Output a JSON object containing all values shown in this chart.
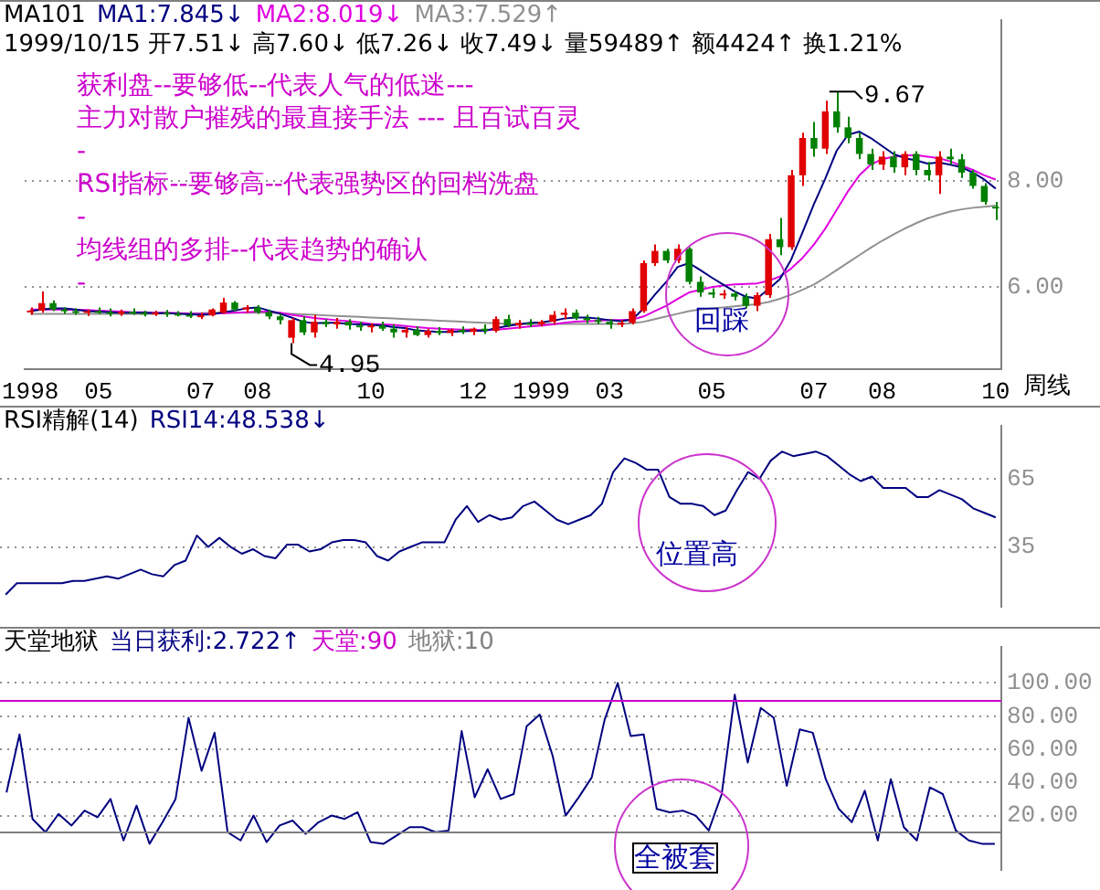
{
  "chart_data": [
    {
      "type": "candlestick",
      "title": "MA101",
      "subtitle": "1999/10/15 开7.51↓ 高7.60↓ 低7.26↓ 收7.49↓ 量59489↑ 额4424↑ 换1.21%",
      "xlabel": "周线",
      "categories": [
        "1998",
        null,
        null,
        null,
        null,
        null,
        "05",
        null,
        null,
        null,
        null,
        null,
        null,
        null,
        null,
        "07",
        null,
        null,
        null,
        null,
        "08",
        null,
        null,
        null,
        null,
        null,
        null,
        null,
        null,
        null,
        "10",
        null,
        null,
        null,
        null,
        null,
        null,
        null,
        null,
        "12",
        null,
        null,
        null,
        null,
        null,
        "1999",
        null,
        null,
        null,
        null,
        null,
        "03",
        null,
        null,
        null,
        null,
        null,
        null,
        null,
        null,
        "05",
        null,
        null,
        null,
        null,
        null,
        null,
        null,
        null,
        "07",
        null,
        null,
        null,
        null,
        null,
        "08",
        null,
        null,
        null,
        null,
        null,
        null,
        null,
        null,
        null,
        "10"
      ],
      "ohlc": [
        [
          5.55,
          5.62,
          5.48,
          5.56
        ],
        [
          5.56,
          5.92,
          5.52,
          5.7
        ],
        [
          5.7,
          5.75,
          5.55,
          5.58
        ],
        [
          5.58,
          5.62,
          5.5,
          5.55
        ],
        [
          5.55,
          5.6,
          5.48,
          5.52
        ],
        [
          5.52,
          5.58,
          5.46,
          5.55
        ],
        [
          5.55,
          5.62,
          5.5,
          5.53
        ],
        [
          5.53,
          5.6,
          5.45,
          5.5
        ],
        [
          5.5,
          5.58,
          5.46,
          5.54
        ],
        [
          5.54,
          5.6,
          5.48,
          5.52
        ],
        [
          5.52,
          5.56,
          5.45,
          5.5
        ],
        [
          5.5,
          5.56,
          5.46,
          5.52
        ],
        [
          5.52,
          5.57,
          5.44,
          5.5
        ],
        [
          5.5,
          5.55,
          5.45,
          5.48
        ],
        [
          5.48,
          5.55,
          5.42,
          5.45
        ],
        [
          5.45,
          5.52,
          5.4,
          5.47
        ],
        [
          5.47,
          5.6,
          5.45,
          5.58
        ],
        [
          5.52,
          5.8,
          5.5,
          5.71
        ],
        [
          5.71,
          5.74,
          5.55,
          5.58
        ],
        [
          5.58,
          5.66,
          5.52,
          5.62
        ],
        [
          5.62,
          5.66,
          5.5,
          5.53
        ],
        [
          5.53,
          5.58,
          5.4,
          5.45
        ],
        [
          5.45,
          5.5,
          5.3,
          5.38
        ],
        [
          5.05,
          5.42,
          4.95,
          5.38
        ],
        [
          5.38,
          5.45,
          5.1,
          5.15
        ],
        [
          5.15,
          5.48,
          5.05,
          5.35
        ],
        [
          5.35,
          5.4,
          5.25,
          5.3
        ],
        [
          5.3,
          5.42,
          5.22,
          5.35
        ],
        [
          5.35,
          5.4,
          5.2,
          5.28
        ],
        [
          5.28,
          5.35,
          5.18,
          5.25
        ],
        [
          5.25,
          5.32,
          5.15,
          5.28
        ],
        [
          5.28,
          5.35,
          5.18,
          5.22
        ],
        [
          5.22,
          5.3,
          5.05,
          5.15
        ],
        [
          5.15,
          5.25,
          5.05,
          5.2
        ],
        [
          5.2,
          5.26,
          5.08,
          5.1
        ],
        [
          5.1,
          5.22,
          5.05,
          5.18
        ],
        [
          5.18,
          5.25,
          5.1,
          5.14
        ],
        [
          5.14,
          5.22,
          5.08,
          5.2
        ],
        [
          5.2,
          5.26,
          5.12,
          5.16
        ],
        [
          5.16,
          5.24,
          5.1,
          5.22
        ],
        [
          5.22,
          5.3,
          5.12,
          5.18
        ],
        [
          5.18,
          5.45,
          5.15,
          5.4
        ],
        [
          5.4,
          5.48,
          5.25,
          5.28
        ],
        [
          5.28,
          5.38,
          5.22,
          5.33
        ],
        [
          5.33,
          5.4,
          5.25,
          5.3
        ],
        [
          5.3,
          5.38,
          5.26,
          5.35
        ],
        [
          5.35,
          5.55,
          5.3,
          5.48
        ],
        [
          5.48,
          5.6,
          5.4,
          5.52
        ],
        [
          5.52,
          5.58,
          5.38,
          5.42
        ],
        [
          5.42,
          5.48,
          5.32,
          5.38
        ],
        [
          5.38,
          5.44,
          5.3,
          5.35
        ],
        [
          5.35,
          5.4,
          5.22,
          5.3
        ],
        [
          5.3,
          5.38,
          5.25,
          5.33
        ],
        [
          5.33,
          5.6,
          5.3,
          5.55
        ],
        [
          5.55,
          6.5,
          5.52,
          6.45
        ],
        [
          6.45,
          6.8,
          6.4,
          6.68
        ],
        [
          6.68,
          6.72,
          6.45,
          6.5
        ],
        [
          6.5,
          6.8,
          6.45,
          6.72
        ],
        [
          6.72,
          6.75,
          6.05,
          6.1
        ],
        [
          6.1,
          6.2,
          5.82,
          5.9
        ],
        [
          5.9,
          5.98,
          5.8,
          5.86
        ],
        [
          5.86,
          5.95,
          5.78,
          5.88
        ],
        [
          5.88,
          5.92,
          5.75,
          5.82
        ],
        [
          5.82,
          5.88,
          5.6,
          5.65
        ],
        [
          5.65,
          5.9,
          5.55,
          5.85
        ],
        [
          5.85,
          7.0,
          5.8,
          6.9
        ],
        [
          6.9,
          7.3,
          6.6,
          6.75
        ],
        [
          6.75,
          8.2,
          6.7,
          8.1
        ],
        [
          8.1,
          8.9,
          7.9,
          8.8
        ],
        [
          8.8,
          9.1,
          8.45,
          8.6
        ],
        [
          8.6,
          9.5,
          8.5,
          9.3
        ],
        [
          9.3,
          9.67,
          8.9,
          9.0
        ],
        [
          9.0,
          9.2,
          8.7,
          8.8
        ],
        [
          8.8,
          8.9,
          8.4,
          8.5
        ],
        [
          8.5,
          8.6,
          8.2,
          8.3
        ],
        [
          8.3,
          8.55,
          8.2,
          8.45
        ],
        [
          8.45,
          8.55,
          8.15,
          8.25
        ],
        [
          8.25,
          8.55,
          8.1,
          8.5
        ],
        [
          8.5,
          8.55,
          8.1,
          8.2
        ],
        [
          8.2,
          8.35,
          8.0,
          8.1
        ],
        [
          8.1,
          8.55,
          7.75,
          8.45
        ],
        [
          8.45,
          8.6,
          8.3,
          8.4
        ],
        [
          8.4,
          8.5,
          8.05,
          8.15
        ],
        [
          8.15,
          8.2,
          7.85,
          7.9
        ],
        [
          7.9,
          7.95,
          7.55,
          7.6
        ],
        [
          7.51,
          7.6,
          7.26,
          7.49
        ]
      ],
      "colors": [
        "#e00000",
        "#e00000",
        "#008000",
        "#008000",
        "#008000",
        "#e00000",
        "#008000",
        "#008000",
        "#e00000",
        "#008000",
        "#008000",
        "#e00000",
        "#008000",
        "#008000",
        "#008000",
        "#e00000",
        "#e00000",
        "#e00000",
        "#008000",
        "#e00000",
        "#008000",
        "#008000",
        "#008000",
        "#e00000",
        "#008000",
        "#e00000",
        "#008000",
        "#e00000",
        "#008000",
        "#008000",
        "#e00000",
        "#008000",
        "#008000",
        "#e00000",
        "#008000",
        "#e00000",
        "#008000",
        "#e00000",
        "#008000",
        "#e00000",
        "#008000",
        "#e00000",
        "#008000",
        "#e00000",
        "#008000",
        "#e00000",
        "#e00000",
        "#e00000",
        "#008000",
        "#008000",
        "#008000",
        "#008000",
        "#e00000",
        "#e00000",
        "#e00000",
        "#e00000",
        "#008000",
        "#e00000",
        "#008000",
        "#008000",
        "#008000",
        "#e00000",
        "#008000",
        "#008000",
        "#e00000",
        "#e00000",
        "#008000",
        "#e00000",
        "#e00000",
        "#008000",
        "#e00000",
        "#008000",
        "#008000",
        "#008000",
        "#008000",
        "#e00000",
        "#008000",
        "#e00000",
        "#008000",
        "#008000",
        "#e00000",
        "#008000",
        "#008000",
        "#008000",
        "#008000",
        "#008000"
      ],
      "series": [
        {
          "type": "line",
          "name": "MA1:7.845↓",
          "color": "#000080",
          "values": [
            5.55,
            5.58,
            5.6,
            5.6,
            5.58,
            5.55,
            5.54,
            5.53,
            5.52,
            5.52,
            5.52,
            5.51,
            5.51,
            5.5,
            5.49,
            5.48,
            5.49,
            5.53,
            5.56,
            5.6,
            5.62,
            5.56,
            5.5,
            5.43,
            5.35,
            5.32,
            5.33,
            5.33,
            5.31,
            5.3,
            5.29,
            5.28,
            5.25,
            5.23,
            5.19,
            5.17,
            5.16,
            5.16,
            5.17,
            5.18,
            5.18,
            5.23,
            5.27,
            5.3,
            5.33,
            5.34,
            5.37,
            5.41,
            5.43,
            5.43,
            5.41,
            5.38,
            5.36,
            5.39,
            5.6,
            5.86,
            6.1,
            6.38,
            6.45,
            6.32,
            6.18,
            6.05,
            5.92,
            5.82,
            5.79,
            5.96,
            6.15,
            6.52,
            7.03,
            7.56,
            8.04,
            8.56,
            8.86,
            8.92,
            8.8,
            8.65,
            8.5,
            8.42,
            8.38,
            8.32,
            8.34,
            8.3,
            8.25,
            8.15,
            8.02,
            7.85
          ]
        },
        {
          "type": "line",
          "name": "MA2:8.019↓",
          "color": "#e000e0",
          "values": [
            5.58,
            5.58,
            5.58,
            5.58,
            5.57,
            5.57,
            5.56,
            5.55,
            5.54,
            5.53,
            5.53,
            5.52,
            5.52,
            5.51,
            5.5,
            5.5,
            5.5,
            5.51,
            5.52,
            5.53,
            5.54,
            5.54,
            5.52,
            5.48,
            5.45,
            5.42,
            5.4,
            5.38,
            5.36,
            5.34,
            5.31,
            5.3,
            5.29,
            5.27,
            5.25,
            5.23,
            5.22,
            5.21,
            5.2,
            5.2,
            5.19,
            5.2,
            5.22,
            5.24,
            5.26,
            5.28,
            5.3,
            5.33,
            5.35,
            5.36,
            5.37,
            5.38,
            5.38,
            5.39,
            5.45,
            5.55,
            5.65,
            5.78,
            5.9,
            5.95,
            6.0,
            6.03,
            6.05,
            6.06,
            6.07,
            6.12,
            6.2,
            6.35,
            6.55,
            6.8,
            7.1,
            7.45,
            7.8,
            8.1,
            8.3,
            8.4,
            8.45,
            8.47,
            8.48,
            8.45,
            8.42,
            8.36,
            8.28,
            8.2,
            8.1,
            8.02
          ]
        },
        {
          "type": "line",
          "name": "MA3:7.529↑",
          "color": "#909090",
          "values": [
            5.5,
            5.5,
            5.5,
            5.5,
            5.5,
            5.5,
            5.5,
            5.5,
            5.5,
            5.5,
            5.5,
            5.5,
            5.51,
            5.51,
            5.51,
            5.51,
            5.52,
            5.52,
            5.52,
            5.52,
            5.52,
            5.52,
            5.51,
            5.5,
            5.49,
            5.48,
            5.47,
            5.46,
            5.45,
            5.44,
            5.43,
            5.42,
            5.41,
            5.4,
            5.39,
            5.38,
            5.37,
            5.36,
            5.35,
            5.34,
            5.33,
            5.32,
            5.31,
            5.31,
            5.31,
            5.31,
            5.31,
            5.31,
            5.31,
            5.31,
            5.31,
            5.31,
            5.31,
            5.32,
            5.35,
            5.4,
            5.45,
            5.5,
            5.55,
            5.58,
            5.6,
            5.62,
            5.64,
            5.66,
            5.68,
            5.72,
            5.78,
            5.86,
            5.95,
            6.05,
            6.18,
            6.32,
            6.46,
            6.6,
            6.74,
            6.87,
            6.99,
            7.1,
            7.2,
            7.29,
            7.36,
            7.42,
            7.46,
            7.49,
            7.51,
            7.53
          ]
        }
      ],
      "ylim": [
        4.46,
        11.02
      ],
      "yticks": [
        {
          "value": 6,
          "label": "6.00"
        },
        {
          "value": 8,
          "label": "8.00"
        }
      ],
      "grid": "y",
      "legend": "top left",
      "annotations": [
        "获利盘--要够低--代表人气的低迷---",
        "主力对散户摧残的最直接手法 --- 且百试百灵",
        "-",
        "RSI指标--要够高--代表强势区的回档洗盘",
        "-",
        "均线组的多排--代表趋势的确认",
        "-",
        "9.67",
        "4.95",
        "回踩"
      ]
    },
    {
      "type": "line",
      "title": "RSI精解(14)",
      "categories": [
        null,
        null,
        null,
        null,
        null,
        null,
        null,
        null,
        null,
        null,
        null,
        null,
        null,
        null,
        null,
        null,
        null,
        null,
        null,
        null,
        null,
        null,
        null,
        null,
        null,
        null,
        null,
        null,
        null,
        null,
        null,
        null,
        null,
        null,
        null,
        null,
        null,
        null,
        null,
        null,
        null,
        null,
        null,
        null,
        null,
        null,
        null,
        null,
        null,
        null,
        null,
        null,
        null,
        null,
        null,
        null,
        null,
        null,
        null,
        null,
        null,
        null,
        null,
        null,
        null,
        null,
        null,
        null,
        null,
        null,
        null,
        null,
        null,
        null,
        null,
        null,
        null,
        null,
        null,
        null,
        null,
        null,
        null,
        null,
        null,
        null,
        null,
        null,
        null
      ],
      "series": [
        {
          "type": "line",
          "name": "RSI14:48.538↓",
          "color": "#000080",
          "values": [
            14,
            19,
            19,
            19,
            19,
            19,
            20,
            20,
            21,
            22,
            21,
            23,
            25,
            23,
            22,
            27,
            29,
            40,
            35,
            39,
            35,
            32,
            34,
            31,
            30,
            36,
            36,
            33,
            34,
            37,
            38,
            38,
            37,
            31,
            29,
            33,
            35,
            37,
            37,
            37,
            47,
            53,
            46,
            49,
            47,
            48,
            53,
            55,
            51,
            47,
            45,
            47,
            49,
            54,
            68,
            74,
            72,
            69,
            69,
            57,
            54,
            54,
            53,
            49,
            51,
            60,
            68,
            65,
            73,
            77,
            75,
            76,
            77,
            75,
            71,
            67,
            64,
            66,
            61,
            61,
            61,
            57,
            57,
            60,
            58,
            56,
            52,
            50,
            48
          ]
        }
      ],
      "ylim": [
        8.5,
        88.5
      ],
      "yticks": [
        35,
        65
      ],
      "grid": "y",
      "legend": "top left",
      "tick_labels": "y",
      "annotations": [
        "位置高"
      ]
    },
    {
      "type": "line",
      "title": "天堂地狱",
      "categories": [
        null,
        null,
        null,
        null,
        null,
        null,
        null,
        null,
        null,
        null,
        null,
        null,
        null,
        null,
        null,
        null,
        null,
        null,
        null,
        null,
        null,
        null,
        null,
        null,
        null,
        null,
        null,
        null,
        null,
        null,
        null,
        null,
        null,
        null,
        null,
        null,
        null,
        null,
        null,
        null,
        null,
        null,
        null,
        null,
        null,
        null,
        null,
        null,
        null,
        null,
        null,
        null,
        null,
        null,
        null,
        null,
        null,
        null,
        null,
        null,
        null,
        null,
        null,
        null,
        null,
        null,
        null,
        null,
        null,
        null,
        null,
        null,
        null,
        null,
        null,
        null,
        null
      ],
      "series": [
        {
          "type": "line",
          "name": "当日获利:2.722↑",
          "color": "#000080",
          "values": [
            34,
            69,
            18,
            10,
            21,
            14,
            23,
            19,
            30,
            5,
            26,
            3,
            16,
            30,
            79,
            47,
            70,
            10,
            5,
            20,
            4,
            14,
            17,
            9,
            16,
            20,
            18,
            22,
            4,
            3,
            8,
            13,
            13,
            10,
            11,
            71,
            31,
            48,
            30,
            33,
            74,
            81,
            56,
            20,
            31,
            43,
            78,
            100,
            68,
            69,
            24,
            22,
            23,
            20,
            11,
            33,
            93,
            52,
            85,
            79,
            38,
            72,
            70,
            42,
            24,
            16,
            35,
            5,
            42,
            13,
            5,
            37,
            33,
            11,
            5,
            3,
            3
          ]
        }
      ],
      "ylim": [
        -13,
        122
      ],
      "yticks": [
        {
          "value": 20,
          "label": "20.00"
        },
        {
          "value": 40,
          "label": "40.00"
        },
        {
          "value": 60,
          "label": "60.00"
        },
        {
          "value": 80,
          "label": "80.00"
        },
        {
          "value": 100,
          "label": "100.00"
        }
      ],
      "grid": "y",
      "legend": "top left",
      "tick_labels": "y",
      "ref_lines": [
        {
          "axis": "y",
          "value": 90,
          "label": "天堂:90",
          "color": "#cc00cc"
        },
        {
          "axis": "y",
          "value": 10,
          "label": "地狱:10",
          "color": "#808080"
        }
      ],
      "annotations": [
        "全被套"
      ]
    }
  ]
}
